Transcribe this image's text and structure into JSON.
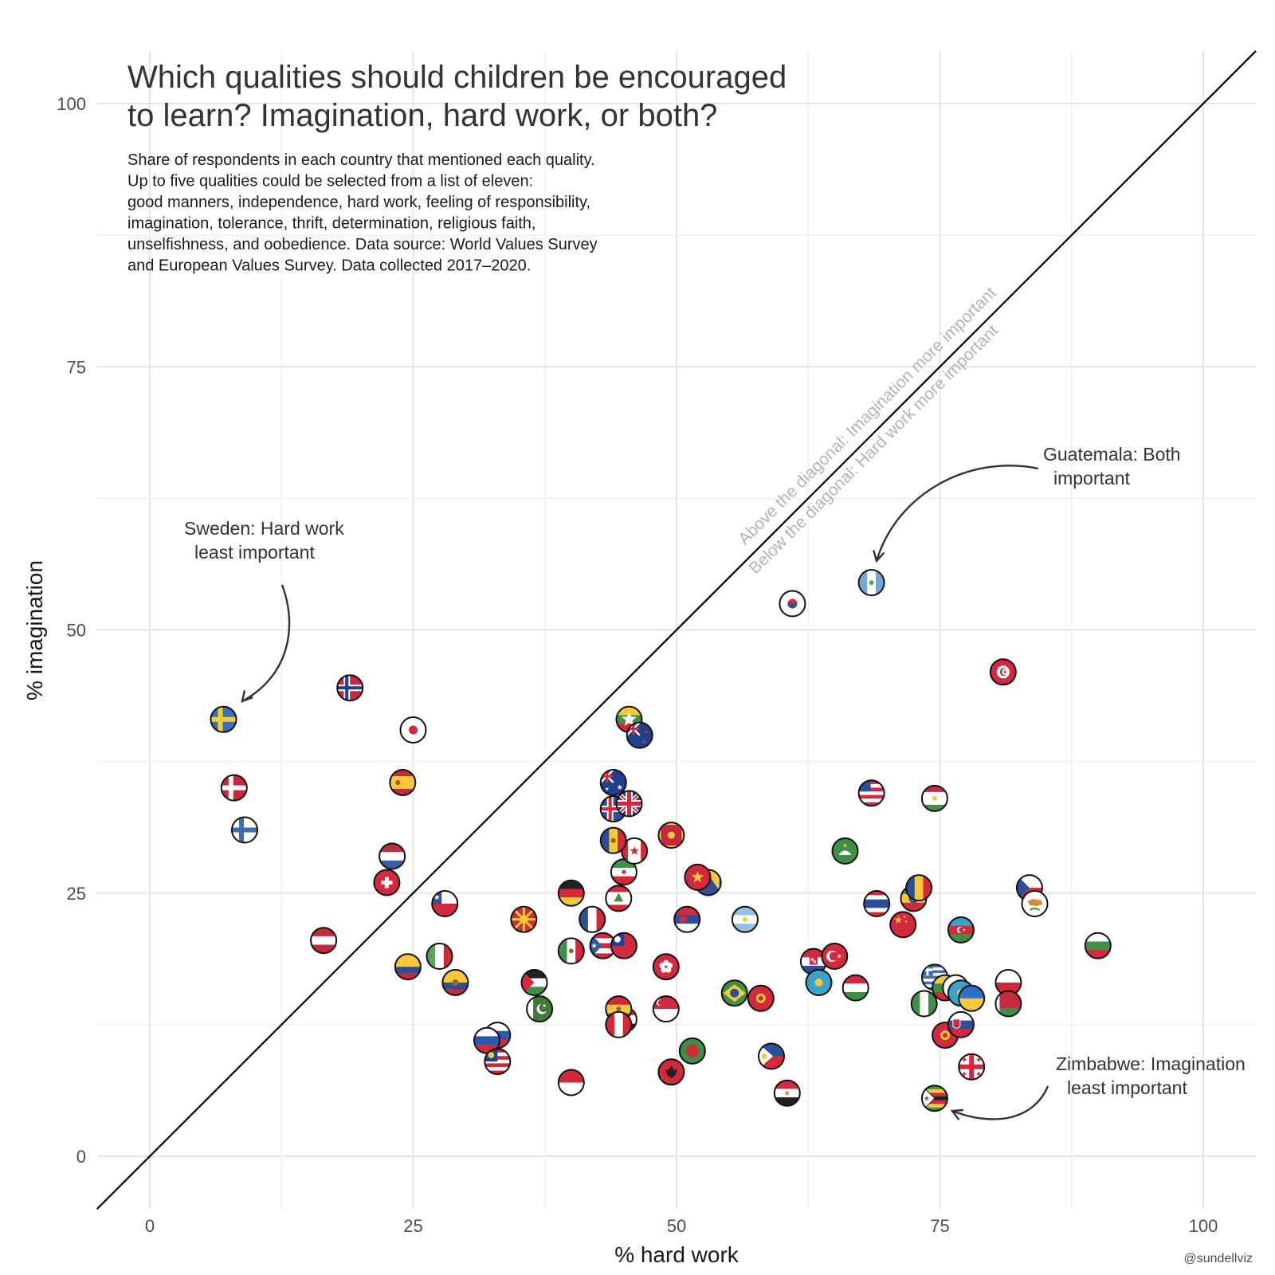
{
  "chart_data": {
    "type": "scatter",
    "title_lines": [
      "Which qualities should children be encouraged",
      "to learn? Imagination, hard work, or both?"
    ],
    "subtitle_lines": [
      "Share of respondents in each country that mentioned each quality.",
      "Up to five qualities could be selected from a list of eleven:",
      "good manners, independence, hard work, feeling of responsibility,",
      "imagination, tolerance, thrift, determination, religious faith,",
      "unselfishness, and oobedience. Data source: World Values Survey",
      "and European Values Survey. Data collected 2017–2020."
    ],
    "xlabel": "% hard work",
    "ylabel": "% imagination",
    "xlim": [
      -5,
      105
    ],
    "ylim": [
      -5,
      105
    ],
    "x_ticks": [
      "0",
      "25",
      "50",
      "75",
      "100"
    ],
    "y_ticks": [
      "0",
      "25",
      "50",
      "75",
      "100"
    ],
    "grid": true,
    "diagonal_labels": [
      "Above the diagonal: Imagination more important",
      "Below the diagonal: Hard work more important"
    ],
    "annotations": [
      {
        "lines": [
          "Sweden: Hard work",
          "least important"
        ]
      },
      {
        "lines": [
          "Guatemala: Both",
          "important"
        ]
      },
      {
        "lines": [
          "Zimbabwe: Imagination",
          "least important"
        ]
      }
    ],
    "credit": "@sundellviz",
    "points": [
      {
        "x": 7,
        "y": 41.5,
        "flag": "sweden"
      },
      {
        "x": 19,
        "y": 44.5,
        "flag": "norway"
      },
      {
        "x": 25,
        "y": 40.5,
        "flag": "japan"
      },
      {
        "x": 8,
        "y": 35,
        "flag": "denmark"
      },
      {
        "x": 9,
        "y": 31,
        "flag": "finland"
      },
      {
        "x": 24,
        "y": 35.5,
        "flag": "spain"
      },
      {
        "x": 23,
        "y": 28.5,
        "flag": "netherlands"
      },
      {
        "x": 22.5,
        "y": 26,
        "flag": "switzerland"
      },
      {
        "x": 16.5,
        "y": 20.5,
        "flag": "austria"
      },
      {
        "x": 24.5,
        "y": 18,
        "flag": "colombia"
      },
      {
        "x": 28,
        "y": 24,
        "flag": "chile"
      },
      {
        "x": 27.5,
        "y": 19,
        "flag": "italy"
      },
      {
        "x": 29,
        "y": 16.5,
        "flag": "ecuador"
      },
      {
        "x": 33,
        "y": 11.5,
        "flag": "slovenia"
      },
      {
        "x": 32,
        "y": 11,
        "flag": "russia"
      },
      {
        "x": 33,
        "y": 9,
        "flag": "malaysia"
      },
      {
        "x": 35.5,
        "y": 22.5,
        "flag": "north_macedonia"
      },
      {
        "x": 36.5,
        "y": 16.5,
        "flag": "jordan"
      },
      {
        "x": 37,
        "y": 14,
        "flag": "pakistan"
      },
      {
        "x": 40,
        "y": 7,
        "flag": "indonesia"
      },
      {
        "x": 40,
        "y": 19.5,
        "flag": "mexico"
      },
      {
        "x": 40,
        "y": 25,
        "flag": "germany"
      },
      {
        "x": 42,
        "y": 22.5,
        "flag": "france"
      },
      {
        "x": 43,
        "y": 20,
        "flag": "puerto_rico"
      },
      {
        "x": 45,
        "y": 20,
        "flag": "taiwan"
      },
      {
        "x": 44.5,
        "y": 24.5,
        "flag": "lebanon"
      },
      {
        "x": 45,
        "y": 27,
        "flag": "iran"
      },
      {
        "x": 46,
        "y": 29,
        "flag": "canada"
      },
      {
        "x": 44,
        "y": 30,
        "flag": "andorra"
      },
      {
        "x": 44,
        "y": 33,
        "flag": "iceland"
      },
      {
        "x": 45.5,
        "y": 33.5,
        "flag": "uk"
      },
      {
        "x": 44,
        "y": 35.5,
        "flag": "australia"
      },
      {
        "x": 45.5,
        "y": 41.5,
        "flag": "myanmar"
      },
      {
        "x": 46.5,
        "y": 40,
        "flag": "new_zealand"
      },
      {
        "x": 45,
        "y": 13,
        "flag": "iraq"
      },
      {
        "x": 44.5,
        "y": 14,
        "flag": "bolivia"
      },
      {
        "x": 44.5,
        "y": 12.5,
        "flag": "peru"
      },
      {
        "x": 49,
        "y": 14,
        "flag": "singapore"
      },
      {
        "x": 49,
        "y": 18,
        "flag": "hong_kong"
      },
      {
        "x": 49.5,
        "y": 8,
        "flag": "albania"
      },
      {
        "x": 51.5,
        "y": 10,
        "flag": "morocco"
      },
      {
        "x": 49.5,
        "y": 30.5,
        "flag": "montenegro"
      },
      {
        "x": 51,
        "y": 22.5,
        "flag": "serbia"
      },
      {
        "x": 53,
        "y": 26,
        "flag": "bosnia"
      },
      {
        "x": 52,
        "y": 26.5,
        "flag": "vietnam"
      },
      {
        "x": 56.5,
        "y": 22.5,
        "flag": "argentina"
      },
      {
        "x": 55.5,
        "y": 15.5,
        "flag": "brazil"
      },
      {
        "x": 58,
        "y": 15,
        "flag": "kyrgyzstan"
      },
      {
        "x": 59,
        "y": 9.5,
        "flag": "philippines"
      },
      {
        "x": 60.5,
        "y": 6,
        "flag": "egypt"
      },
      {
        "x": 61,
        "y": 52.5,
        "flag": "south_korea"
      },
      {
        "x": 63,
        "y": 18.5,
        "flag": "croatia"
      },
      {
        "x": 63.5,
        "y": 16.5,
        "flag": "kazakhstan"
      },
      {
        "x": 65,
        "y": 19,
        "flag": "turkey"
      },
      {
        "x": 66,
        "y": 29,
        "flag": "macau"
      },
      {
        "x": 67,
        "y": 16,
        "flag": "hungary"
      },
      {
        "x": 68.5,
        "y": 34.5,
        "flag": "usa"
      },
      {
        "x": 69,
        "y": 24,
        "flag": "thailand"
      },
      {
        "x": 68.5,
        "y": 54.5,
        "flag": "guatemala"
      },
      {
        "x": 71.5,
        "y": 22,
        "flag": "china"
      },
      {
        "x": 72.5,
        "y": 24.5,
        "flag": "ethiopia"
      },
      {
        "x": 73,
        "y": 25.5,
        "flag": "romania"
      },
      {
        "x": 73.5,
        "y": 14.5,
        "flag": "nigeria"
      },
      {
        "x": 74.5,
        "y": 17,
        "flag": "greece"
      },
      {
        "x": 74.5,
        "y": 34,
        "flag": "tajikistan"
      },
      {
        "x": 74.5,
        "y": 5.5,
        "flag": "zimbabwe"
      },
      {
        "x": 75.5,
        "y": 11.5,
        "flag": "kyrgyzstan"
      },
      {
        "x": 75.5,
        "y": 16,
        "flag": "lithuania"
      },
      {
        "x": 76.5,
        "y": 16,
        "flag": "cyprus"
      },
      {
        "x": 77,
        "y": 15.5,
        "flag": "kazakhstan"
      },
      {
        "x": 77,
        "y": 12.5,
        "flag": "slovakia"
      },
      {
        "x": 77,
        "y": 21.5,
        "flag": "azerbaijan"
      },
      {
        "x": 78,
        "y": 15,
        "flag": "ukraine"
      },
      {
        "x": 78,
        "y": 8.5,
        "flag": "georgia"
      },
      {
        "x": 81,
        "y": 46,
        "flag": "tunisia"
      },
      {
        "x": 81.5,
        "y": 16.5,
        "flag": "poland"
      },
      {
        "x": 81.5,
        "y": 14.5,
        "flag": "belarus"
      },
      {
        "x": 83.5,
        "y": 25.5,
        "flag": "czechia"
      },
      {
        "x": 84,
        "y": 24,
        "flag": "cyprus"
      },
      {
        "x": 90,
        "y": 20,
        "flag": "bulgaria"
      }
    ]
  }
}
